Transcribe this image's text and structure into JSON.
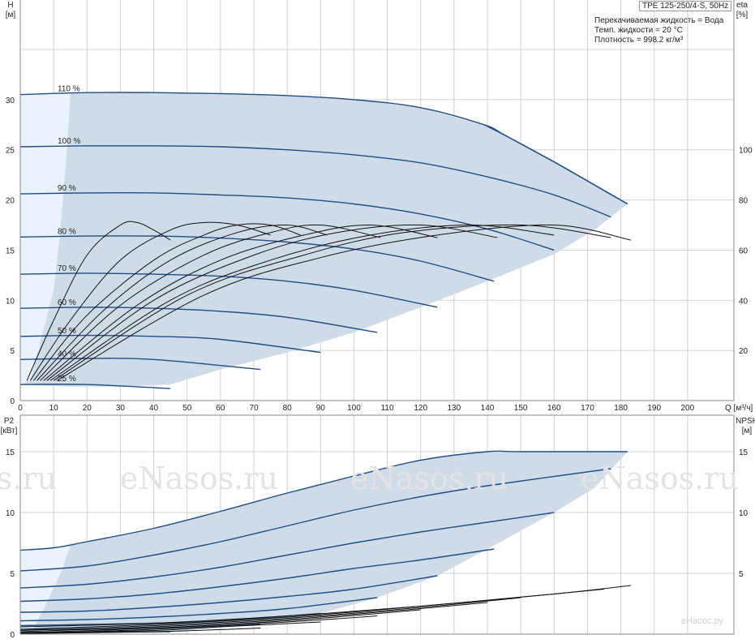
{
  "chart_data": [
    {
      "type": "line",
      "title": "TPE 125-250/4-S, 50Hz",
      "notes": [
        "Перекачиваемая жидкость = Вода",
        "Темп. жидкости = 20 °C",
        "Плотность = 998.2 кг/м³"
      ],
      "xlabel": "Q [м³/ч]",
      "ylabel": "H [м]",
      "y2label": "eta [%]",
      "xlim": [
        0,
        210
      ],
      "ylim": [
        0,
        35
      ],
      "y2lim": [
        0,
        140
      ],
      "x_ticks": [
        0,
        10,
        20,
        30,
        40,
        50,
        60,
        70,
        80,
        90,
        100,
        110,
        120,
        130,
        140,
        150,
        160,
        170,
        180,
        190,
        200
      ],
      "y_ticks": [
        0,
        5,
        10,
        15,
        20,
        25,
        30
      ],
      "y2_ticks": [
        20,
        40,
        60,
        80,
        100
      ],
      "grid": true,
      "head_series": [
        {
          "name": "110 %",
          "x": [
            0,
            20,
            40,
            60,
            80,
            100,
            120,
            139,
            145,
            160,
            170,
            182
          ],
          "values": [
            30.5,
            30.7,
            30.7,
            30.6,
            30.4,
            30.0,
            29.2,
            27.5,
            26.5,
            23.8,
            21.9,
            19.6
          ]
        },
        {
          "name": "100 %",
          "x": [
            0,
            20,
            40,
            60,
            80,
            100,
            120,
            140,
            160,
            177
          ],
          "values": [
            25.3,
            25.4,
            25.4,
            25.3,
            25.0,
            24.5,
            23.7,
            22.3,
            20.5,
            18.3
          ]
        },
        {
          "name": "90 %",
          "x": [
            0,
            20,
            40,
            60,
            80,
            100,
            120,
            140,
            160
          ],
          "values": [
            20.6,
            20.7,
            20.7,
            20.5,
            20.2,
            19.6,
            18.6,
            17.1,
            15.0
          ]
        },
        {
          "name": "80 %",
          "x": [
            0,
            20,
            40,
            60,
            80,
            100,
            120,
            142
          ],
          "values": [
            16.3,
            16.4,
            16.4,
            16.2,
            15.8,
            15.1,
            13.9,
            11.9
          ]
        },
        {
          "name": "70 %",
          "x": [
            0,
            20,
            40,
            60,
            80,
            100,
            125
          ],
          "values": [
            12.6,
            12.7,
            12.6,
            12.4,
            11.9,
            11.0,
            9.3
          ]
        },
        {
          "name": "60 %",
          "x": [
            0,
            20,
            40,
            60,
            80,
            107
          ],
          "values": [
            9.2,
            9.3,
            9.2,
            8.9,
            8.3,
            6.8
          ]
        },
        {
          "name": "50 %",
          "x": [
            0,
            20,
            40,
            60,
            90
          ],
          "values": [
            6.4,
            6.5,
            6.4,
            6.1,
            4.8
          ]
        },
        {
          "name": "40 %",
          "x": [
            0,
            20,
            40,
            72
          ],
          "values": [
            4.1,
            4.2,
            4.1,
            3.1
          ]
        },
        {
          "name": "25 %",
          "x": [
            0,
            20,
            45
          ],
          "values": [
            1.6,
            1.6,
            1.2
          ]
        }
      ],
      "eta_series": [
        {
          "x": [
            2,
            10,
            20,
            30,
            35,
            40,
            45
          ],
          "values": [
            8,
            32,
            58,
            70,
            71,
            68,
            64
          ]
        },
        {
          "x": [
            3,
            15,
            30,
            45,
            55,
            65,
            75
          ],
          "values": [
            8,
            32,
            56,
            68,
            71,
            70,
            66
          ]
        },
        {
          "x": [
            4,
            20,
            40,
            55,
            65,
            75,
            84
          ],
          "values": [
            8,
            34,
            56,
            66,
            70,
            70,
            66
          ]
        },
        {
          "x": [
            5,
            25,
            45,
            65,
            80,
            92
          ],
          "values": [
            8,
            36,
            56,
            67,
            70,
            66
          ]
        },
        {
          "x": [
            6,
            30,
            55,
            75,
            90,
            108
          ],
          "values": [
            8,
            38,
            58,
            67,
            70,
            65
          ]
        },
        {
          "x": [
            7,
            35,
            60,
            85,
            105,
            125
          ],
          "values": [
            8,
            38,
            56,
            66,
            70,
            65
          ]
        },
        {
          "x": [
            8,
            40,
            70,
            95,
            120,
            143
          ],
          "values": [
            8,
            40,
            58,
            67,
            70,
            65
          ]
        },
        {
          "x": [
            9,
            45,
            75,
            105,
            135,
            160
          ],
          "values": [
            8,
            40,
            56,
            66,
            70,
            66
          ]
        },
        {
          "x": [
            10,
            50,
            85,
            115,
            150,
            177
          ],
          "values": [
            8,
            42,
            58,
            67,
            70,
            65
          ]
        },
        {
          "x": [
            11,
            55,
            90,
            125,
            160,
            183
          ],
          "values": [
            8,
            42,
            57,
            66,
            70,
            64
          ]
        }
      ],
      "envelope": {
        "x": [
          0,
          20,
          40,
          60,
          80,
          100,
          120,
          139,
          145,
          160,
          170,
          182,
          172,
          160,
          140,
          120,
          100,
          80,
          60,
          45,
          30,
          15,
          5,
          0
        ],
        "values": [
          30.5,
          30.7,
          30.7,
          30.6,
          30.4,
          30.0,
          29.2,
          27.5,
          26.5,
          23.8,
          21.9,
          19.6,
          17.0,
          14.6,
          11.9,
          9.3,
          6.8,
          4.8,
          3.1,
          1.6,
          1.4,
          1.4,
          1.5,
          1.6
        ]
      },
      "light_region": {
        "x": [
          0,
          15,
          14,
          12,
          10,
          5,
          3,
          0
        ],
        "values": [
          30.5,
          30.7,
          25.0,
          17.0,
          11.0,
          4.5,
          2.0,
          1.6
        ]
      }
    },
    {
      "type": "line",
      "ylabel": "P2 [кВт]",
      "y2label": "NPSH [м]",
      "xlim": [
        0,
        210
      ],
      "ylim": [
        0,
        18
      ],
      "y2lim": [
        0,
        18
      ],
      "y_ticks": [
        0,
        5,
        10,
        15
      ],
      "y2_ticks": [
        5,
        10,
        15
      ],
      "grid": true,
      "power_series": [
        {
          "name": "110 %",
          "x": [
            0,
            10,
            20,
            40,
            60,
            80,
            100,
            120,
            140,
            150,
            182
          ],
          "values": [
            6.9,
            7.1,
            7.6,
            8.7,
            10.1,
            11.6,
            13.0,
            14.3,
            15.0,
            15.0,
            15.0
          ]
        },
        {
          "name": "100 %",
          "x": [
            0,
            20,
            40,
            60,
            80,
            100,
            120,
            140,
            177
          ],
          "values": [
            5.2,
            5.6,
            6.5,
            7.6,
            8.9,
            10.2,
            11.3,
            12.2,
            13.6
          ]
        },
        {
          "name": "90 %",
          "x": [
            0,
            20,
            40,
            60,
            80,
            100,
            120,
            140,
            160
          ],
          "values": [
            3.8,
            4.1,
            4.7,
            5.5,
            6.5,
            7.5,
            8.4,
            9.2,
            10.0
          ]
        },
        {
          "name": "80 %",
          "x": [
            0,
            20,
            40,
            60,
            80,
            100,
            120,
            142
          ],
          "values": [
            2.7,
            2.9,
            3.3,
            3.9,
            4.6,
            5.4,
            6.1,
            7.0
          ]
        },
        {
          "name": "70 %",
          "x": [
            0,
            20,
            40,
            60,
            80,
            100,
            125
          ],
          "values": [
            1.8,
            1.9,
            2.2,
            2.6,
            3.1,
            3.7,
            4.8
          ]
        },
        {
          "name": "60 %",
          "x": [
            0,
            20,
            40,
            60,
            80,
            107
          ],
          "values": [
            1.1,
            1.2,
            1.4,
            1.7,
            2.1,
            3.0
          ]
        },
        {
          "name": "50 %",
          "x": [
            0,
            20,
            40,
            60,
            90
          ],
          "values": [
            0.7,
            0.8,
            0.9,
            1.1,
            1.7
          ]
        },
        {
          "name": "40 %",
          "x": [
            0,
            20,
            40,
            72
          ],
          "values": [
            0.4,
            0.4,
            0.5,
            0.8
          ]
        },
        {
          "name": "25 %",
          "x": [
            0,
            20,
            45
          ],
          "values": [
            0.15,
            0.15,
            0.2
          ]
        }
      ],
      "npsh_series": [
        {
          "x": [
            0,
            40,
            80,
            120,
            160,
            183
          ],
          "values": [
            0.6,
            0.9,
            1.5,
            2.3,
            3.3,
            4.0
          ]
        },
        {
          "x": [
            0,
            40,
            80,
            120,
            160,
            175
          ],
          "values": [
            0.4,
            0.8,
            1.4,
            2.3,
            3.3,
            3.7
          ]
        },
        {
          "x": [
            0,
            40,
            80,
            120,
            150
          ],
          "values": [
            0.3,
            0.7,
            1.3,
            2.2,
            3.0
          ]
        },
        {
          "x": [
            0,
            40,
            80,
            120,
            140
          ],
          "values": [
            0.2,
            0.6,
            1.2,
            2.1,
            2.6
          ]
        },
        {
          "x": [
            0,
            40,
            80,
            120
          ],
          "values": [
            0.1,
            0.5,
            1.1,
            2.0
          ]
        },
        {
          "x": [
            0,
            40,
            80,
            107
          ],
          "values": [
            0.05,
            0.4,
            1.0,
            1.5
          ]
        },
        {
          "x": [
            0,
            40,
            60,
            90
          ],
          "values": [
            0.05,
            0.3,
            0.6,
            1.0
          ]
        },
        {
          "x": [
            0,
            40,
            72
          ],
          "values": [
            0.05,
            0.2,
            0.5
          ]
        }
      ],
      "envelope": {
        "x": [
          0,
          10,
          20,
          40,
          60,
          80,
          100,
          120,
          140,
          150,
          182,
          172,
          160,
          140,
          125,
          107,
          90,
          72,
          45,
          20,
          10,
          0
        ],
        "values": [
          6.9,
          7.1,
          7.6,
          8.7,
          10.1,
          11.6,
          13.0,
          14.3,
          15.0,
          15.0,
          15.0,
          12.0,
          10.0,
          7.0,
          4.8,
          3.0,
          1.7,
          0.8,
          0.2,
          0.15,
          0.15,
          0.15
        ]
      },
      "light_region": {
        "x": [
          0,
          15,
          12,
          8,
          4,
          0
        ],
        "values": [
          6.9,
          7.2,
          5.0,
          2.6,
          0.5,
          0.15
        ]
      }
    }
  ],
  "watermarks": [
    "eNasos.ru",
    "eNasos.ru",
    "eNasos.ru",
    "eNasos.ru"
  ],
  "corner_mark": "eНасос.ру",
  "colors": {
    "envelope": "#cfdce8",
    "light_region": "#eaf3fb",
    "head_line": "#1f4e86",
    "eta_line": "#111111",
    "grid": "#d0d0d0",
    "axis": "#888888"
  }
}
